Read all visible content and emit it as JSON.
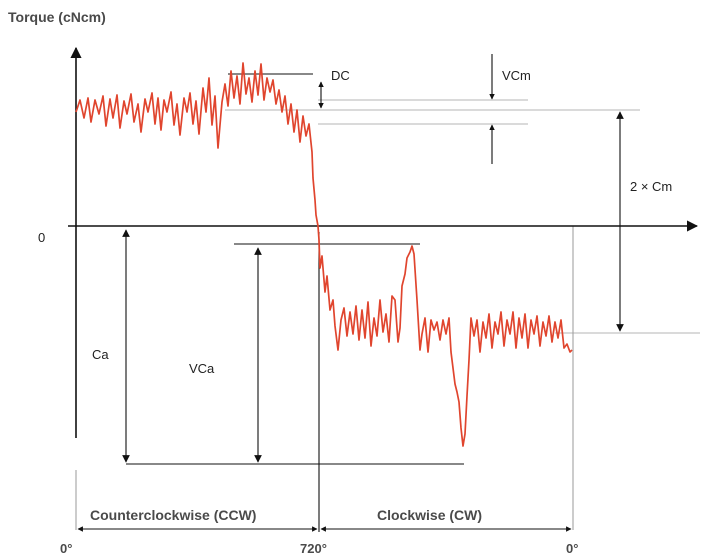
{
  "labels": {
    "y_axis": "Torque (cNcm)",
    "zero": "0",
    "dc": "DC",
    "vcm": "VCm",
    "two_cm": "2 × Cm",
    "ca": "Ca",
    "vca": "VCa",
    "ccw": "Counterclockwise (CCW)",
    "cw": "Clockwise (CW)",
    "tick_start": "0°",
    "tick_mid": "720°",
    "tick_end": "0°"
  },
  "colors": {
    "curve": "#e0452e",
    "ink": "#111111",
    "guide": "#b5b5b5",
    "label_bold": "#4a4a4a"
  }
}
